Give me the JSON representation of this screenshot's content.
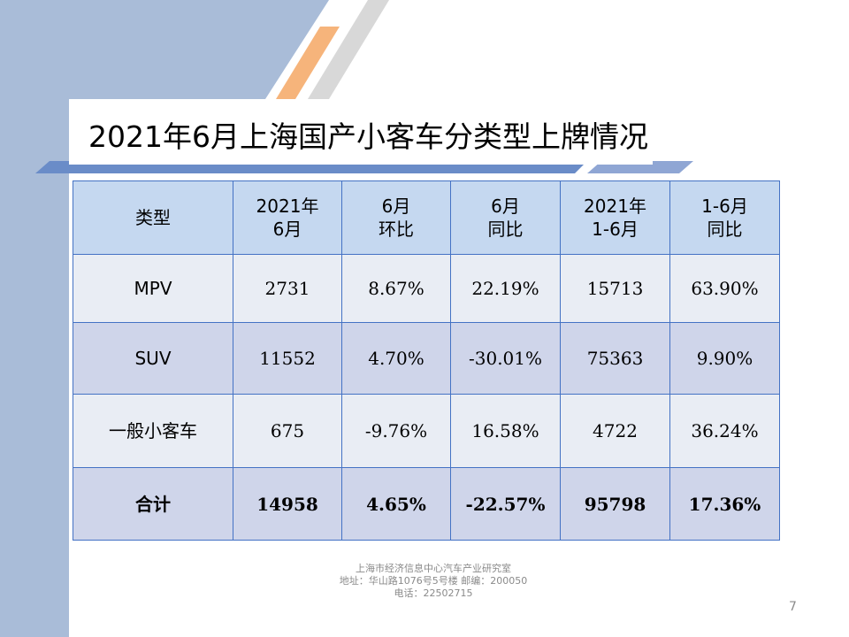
{
  "slide": {
    "title": "2021年6月上海国产小客车分类型上牌情况",
    "page_number": "7"
  },
  "table": {
    "headers": [
      [
        "类型"
      ],
      [
        "2021年",
        "6月"
      ],
      [
        "6月",
        "环比"
      ],
      [
        "6月",
        "同比"
      ],
      [
        "2021年",
        "1-6月"
      ],
      [
        "1-6月",
        "同比"
      ]
    ],
    "rows": [
      [
        "MPV",
        "2731",
        "8.67%",
        "22.19%",
        "15713",
        "63.90%"
      ],
      [
        "SUV",
        "11552",
        "4.70%",
        "-30.01%",
        "75363",
        "9.90%"
      ],
      [
        "一般小客车",
        "675",
        "-9.76%",
        "16.58%",
        "4722",
        "36.24%"
      ],
      [
        "合计",
        "14958",
        "4.65%",
        "-22.57%",
        "95798",
        "17.36%"
      ]
    ]
  },
  "footer": {
    "org": "上海市经济信息中心汽车产业研究室",
    "address": "地址：华山路1076号5号楼   邮编：200050",
    "phone": "电话：22502715"
  },
  "colors": {
    "header_fill": "#c5d8f0",
    "row_light": "#e9edf4",
    "row_dark": "#cfd5ea",
    "border": "#4472c4",
    "sidebar": "#a9bcd8",
    "accent_orange": "#f6b47b"
  }
}
